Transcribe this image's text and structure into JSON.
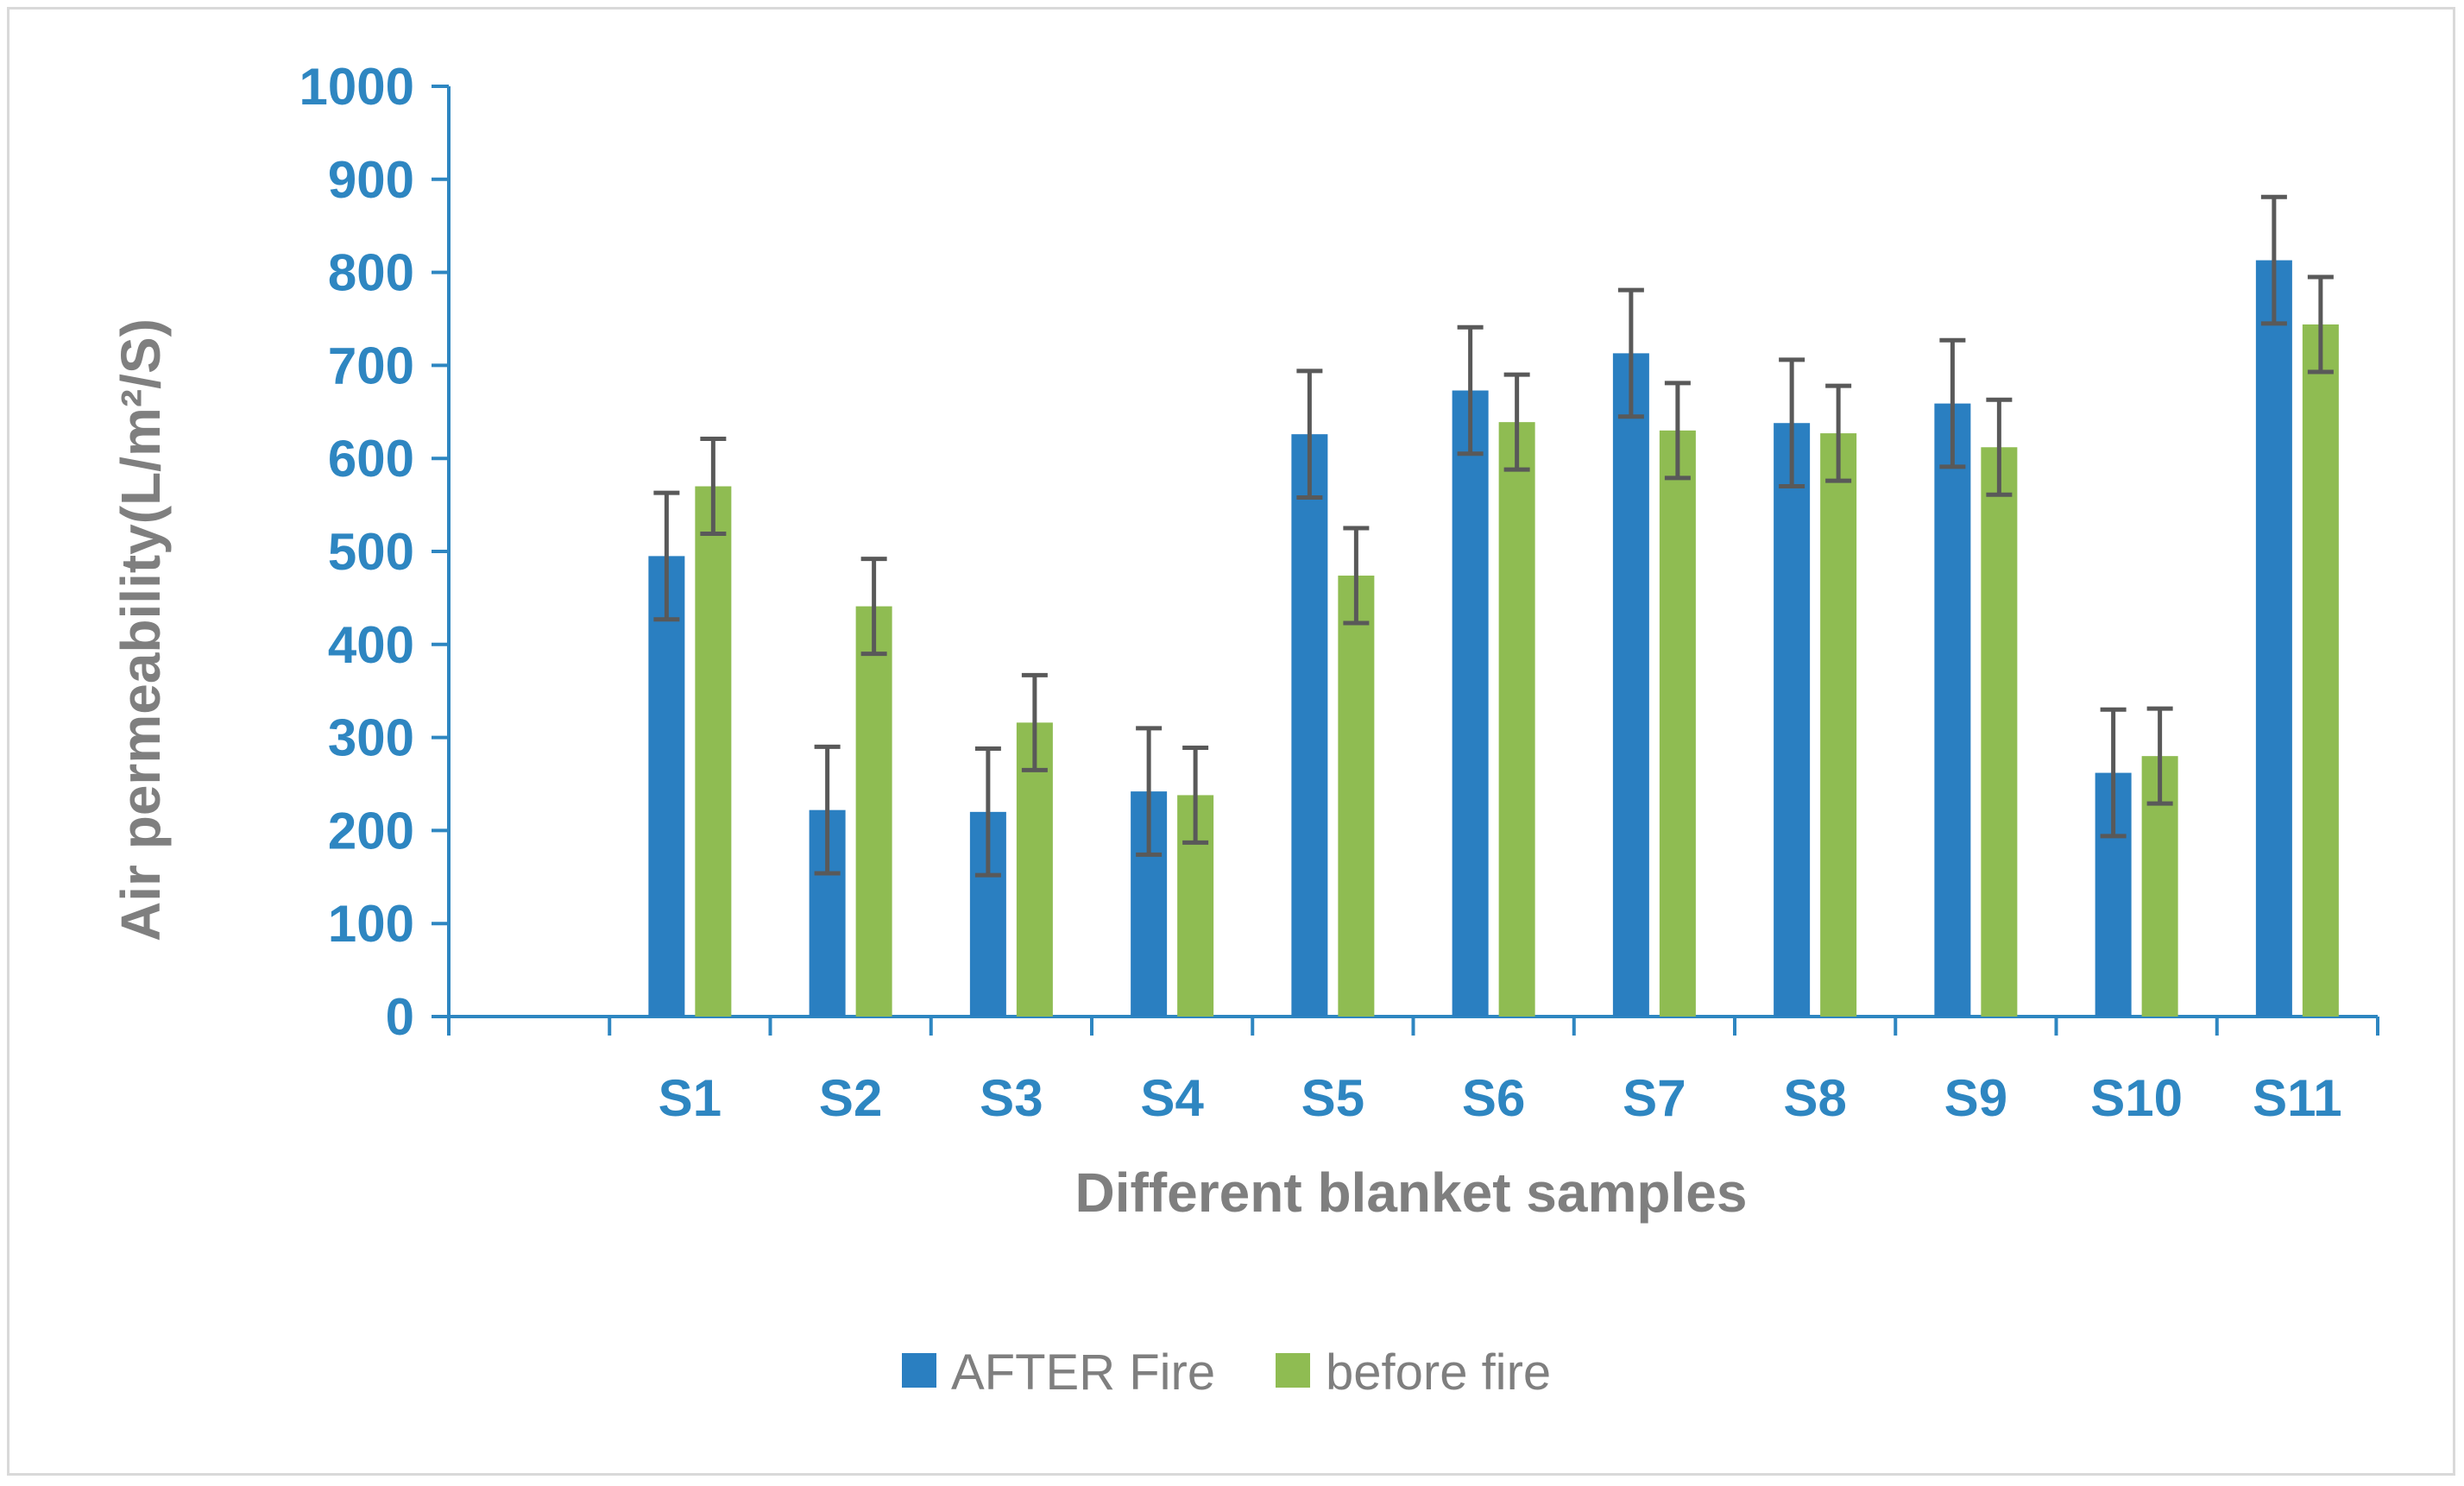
{
  "chart_data": {
    "type": "bar",
    "title": "",
    "xlabel": "Different blanket samples",
    "ylabel": "Air permeability(L/m²/S)",
    "ylim": [
      0,
      1000
    ],
    "yticks": [
      0,
      100,
      200,
      300,
      400,
      500,
      600,
      700,
      800,
      900,
      1000
    ],
    "categories": [
      "",
      "S1",
      "S2",
      "S3",
      "S4",
      "S5",
      "S6",
      "S7",
      "S8",
      "S9",
      "S10",
      "S11"
    ],
    "series": [
      {
        "name": "AFTER Fire",
        "color": "#2a7fc1",
        "values": [
          null,
          495,
          222,
          220,
          242,
          626,
          673,
          713,
          638,
          659,
          262,
          813
        ],
        "errors": [
          null,
          68,
          68,
          68,
          68,
          68,
          68,
          68,
          68,
          68,
          68,
          68
        ]
      },
      {
        "name": "before fire",
        "color": "#8fbc52",
        "values": [
          null,
          570,
          441,
          316,
          238,
          474,
          639,
          630,
          627,
          612,
          280,
          744
        ],
        "errors": [
          null,
          51,
          51,
          51,
          51,
          51,
          51,
          51,
          51,
          51,
          51,
          51
        ]
      }
    ],
    "grid": false,
    "legend_position": "bottom-center",
    "axis_color": "#2e86c1",
    "errorbar_color": "#595959"
  }
}
